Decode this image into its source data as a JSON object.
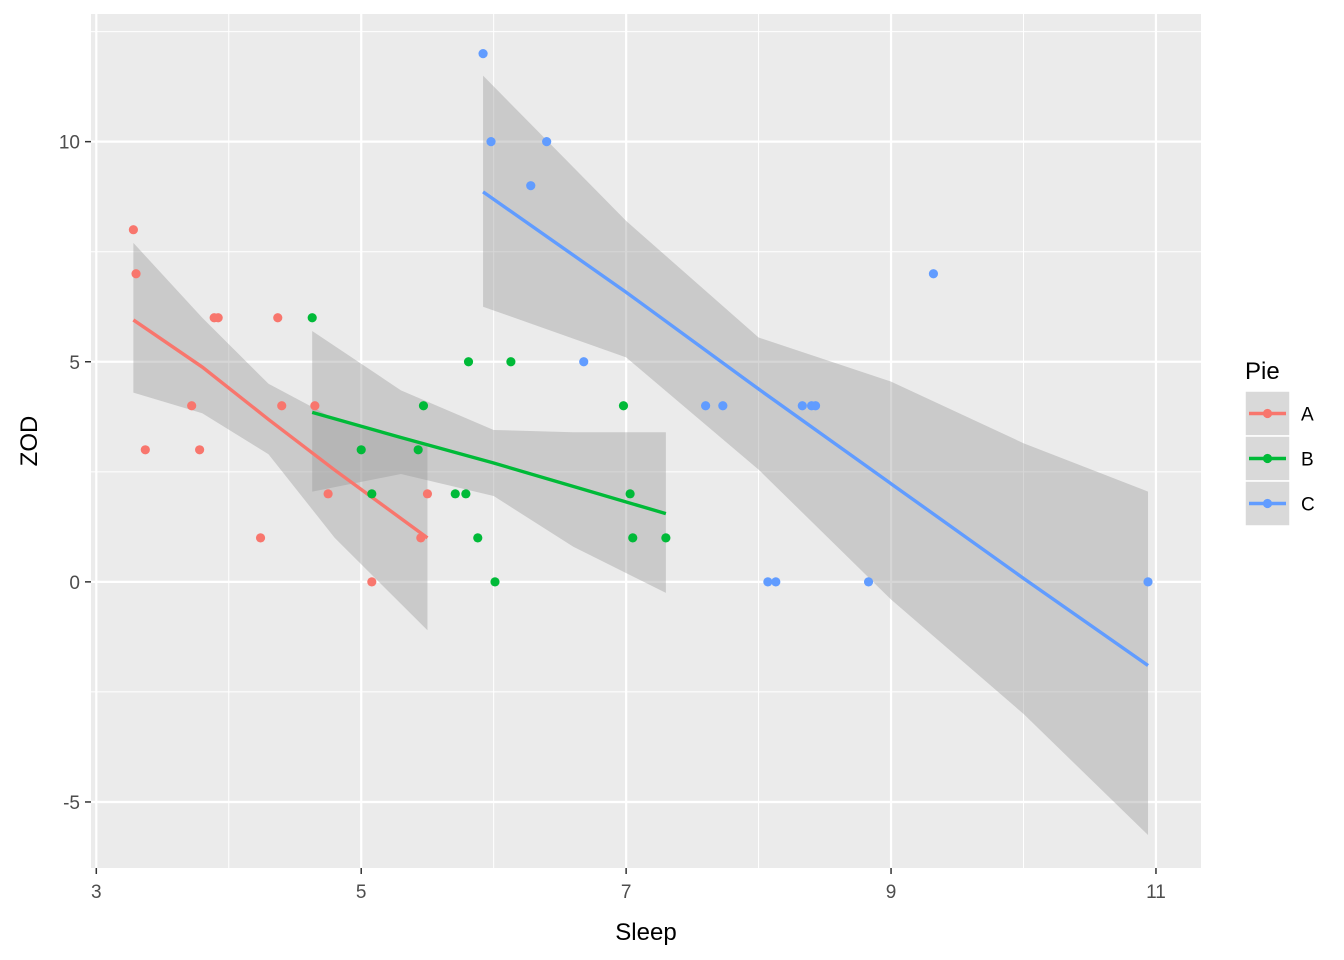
{
  "chart_data": {
    "type": "scatter",
    "xlabel": "Sleep",
    "ylabel": "ZOD",
    "xlim": [
      2.96,
      11.34
    ],
    "ylim": [
      -6.5,
      12.9
    ],
    "x_ticks": [
      3,
      5,
      7,
      9,
      11
    ],
    "y_ticks": [
      -5,
      0,
      5,
      10
    ],
    "grid": true,
    "legend": {
      "title": "Pie",
      "position": "right"
    },
    "series": [
      {
        "name": "A",
        "color": "#F8766D",
        "points": [
          {
            "x": 3.28,
            "y": 8
          },
          {
            "x": 3.3,
            "y": 7
          },
          {
            "x": 3.37,
            "y": 3
          },
          {
            "x": 3.72,
            "y": 4
          },
          {
            "x": 3.78,
            "y": 3
          },
          {
            "x": 3.89,
            "y": 6
          },
          {
            "x": 3.92,
            "y": 6
          },
          {
            "x": 4.24,
            "y": 1
          },
          {
            "x": 4.37,
            "y": 6
          },
          {
            "x": 4.4,
            "y": 4
          },
          {
            "x": 4.65,
            "y": 4
          },
          {
            "x": 4.75,
            "y": 2
          },
          {
            "x": 5.08,
            "y": 0
          },
          {
            "x": 5.45,
            "y": 1
          },
          {
            "x": 5.5,
            "y": 2
          }
        ],
        "fit": {
          "x": [
            3.28,
            3.8,
            4.3,
            4.8,
            5.5
          ],
          "y": [
            5.95,
            4.88,
            3.69,
            2.54,
            1.0
          ],
          "lower": [
            4.3,
            3.83,
            2.9,
            1.0,
            -1.1
          ],
          "upper": [
            7.7,
            6.0,
            4.5,
            3.7,
            3.1
          ]
        }
      },
      {
        "name": "B",
        "color": "#00BA38",
        "points": [
          {
            "x": 4.63,
            "y": 6
          },
          {
            "x": 5.0,
            "y": 3
          },
          {
            "x": 5.08,
            "y": 2
          },
          {
            "x": 5.43,
            "y": 3
          },
          {
            "x": 5.47,
            "y": 4
          },
          {
            "x": 5.71,
            "y": 2
          },
          {
            "x": 5.79,
            "y": 2
          },
          {
            "x": 5.81,
            "y": 5
          },
          {
            "x": 5.88,
            "y": 1
          },
          {
            "x": 6.01,
            "y": 0
          },
          {
            "x": 6.13,
            "y": 5
          },
          {
            "x": 6.98,
            "y": 4
          },
          {
            "x": 7.03,
            "y": 2
          },
          {
            "x": 7.05,
            "y": 1
          },
          {
            "x": 7.3,
            "y": 1
          }
        ],
        "fit": {
          "x": [
            4.63,
            5.3,
            6.0,
            6.6,
            7.3
          ],
          "y": [
            3.85,
            3.28,
            2.7,
            2.17,
            1.55
          ],
          "lower": [
            2.05,
            2.45,
            1.95,
            0.8,
            -0.25
          ],
          "upper": [
            5.7,
            4.35,
            3.45,
            3.4,
            3.4
          ]
        }
      },
      {
        "name": "C",
        "color": "#619CFF",
        "points": [
          {
            "x": 5.92,
            "y": 12
          },
          {
            "x": 5.98,
            "y": 10
          },
          {
            "x": 6.28,
            "y": 9
          },
          {
            "x": 6.4,
            "y": 10
          },
          {
            "x": 6.68,
            "y": 5
          },
          {
            "x": 7.6,
            "y": 4
          },
          {
            "x": 7.73,
            "y": 4
          },
          {
            "x": 8.07,
            "y": 0
          },
          {
            "x": 8.13,
            "y": 0
          },
          {
            "x": 8.33,
            "y": 4
          },
          {
            "x": 8.4,
            "y": 4
          },
          {
            "x": 8.43,
            "y": 4
          },
          {
            "x": 8.83,
            "y": 0
          },
          {
            "x": 9.32,
            "y": 7
          },
          {
            "x": 10.94,
            "y": 0
          }
        ],
        "fit": {
          "x": [
            5.92,
            7.0,
            8.0,
            9.0,
            10.0,
            10.94
          ],
          "y": [
            8.86,
            6.58,
            4.38,
            2.23,
            0.08,
            -1.9
          ],
          "lower": [
            6.25,
            5.1,
            2.55,
            -0.4,
            -3.0,
            -5.75
          ],
          "upper": [
            11.5,
            8.2,
            5.55,
            4.55,
            3.15,
            2.05
          ]
        }
      }
    ]
  }
}
